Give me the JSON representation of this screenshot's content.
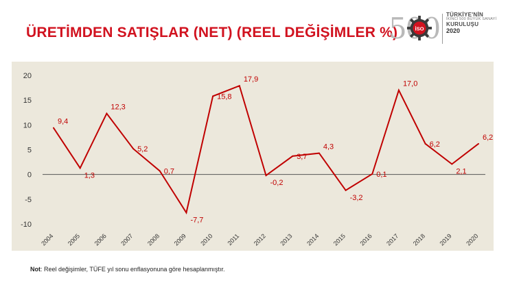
{
  "header": {
    "title": "ÜRETİMDEN SATIŞLAR (NET) (REEL DEĞİŞİMLER %)"
  },
  "logo": {
    "number": "500",
    "line1": "TÜRKİYE'NİN",
    "line2": "İKİNCİ 500 BÜYÜK SANAYİ",
    "line3": "KURULUŞU",
    "line4": "2020",
    "badge": "İSO"
  },
  "note": {
    "label": "Not",
    "text": ": Reel değişimler,  TÜFE yıl sonu enflasyonuna göre hesaplanmıştır."
  },
  "colors": {
    "title": "#d1121f",
    "line": "#c00000",
    "plot_background": "#ece8dc",
    "zero_line": "#555555"
  },
  "chart_data": {
    "type": "line",
    "title": "",
    "xlabel": "",
    "ylabel": "",
    "categories": [
      "2004",
      "2005",
      "2006",
      "2007",
      "2008",
      "2009",
      "2010",
      "2011",
      "2012",
      "2013",
      "2014",
      "2015",
      "2016",
      "2017",
      "2018",
      "2019",
      "2020"
    ],
    "values": [
      9.4,
      1.3,
      12.3,
      5.2,
      0.7,
      -7.7,
      15.8,
      17.9,
      -0.2,
      3.7,
      4.3,
      -3.2,
      0.1,
      17.0,
      6.2,
      2.1,
      6.2
    ],
    "labels": [
      "9,4",
      "1,3",
      "12,3",
      "5,2",
      "0,7",
      "-7,7",
      "15,8",
      "17,9",
      "-0,2",
      "3,7",
      "4,3",
      "-3,2",
      "0,1",
      "17,0",
      "6,2",
      "2,1",
      "6,2"
    ],
    "y_ticks": [
      20,
      15,
      10,
      5,
      0,
      -5,
      -10
    ],
    "y_tick_labels": [
      "20",
      "15",
      "10",
      "5",
      "0",
      "-5",
      "-10"
    ],
    "ylim": [
      -10,
      20
    ],
    "grid": false,
    "legend": "none"
  }
}
